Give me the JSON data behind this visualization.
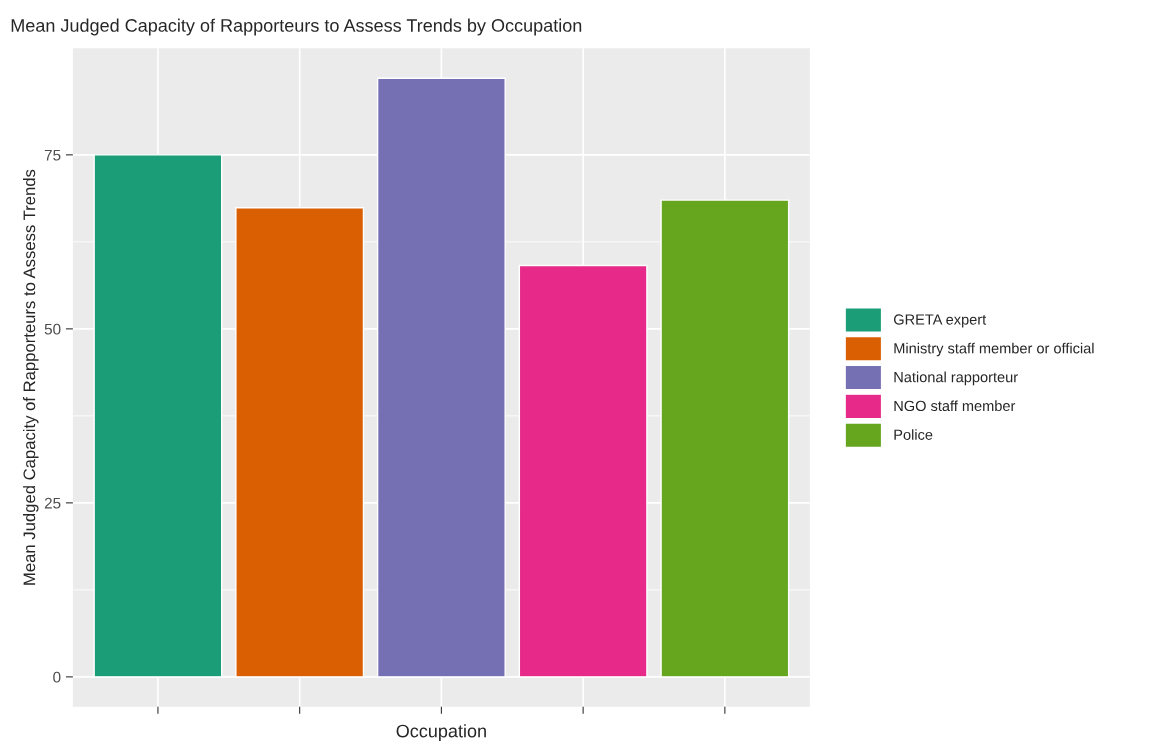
{
  "chart_data": {
    "type": "bar",
    "title": "Mean Judged Capacity of Rapporteurs to Assess Trends by Occupation",
    "xlabel": "Occupation",
    "ylabel": "Mean Judged Capacity of Rapporteurs to Assess Trends",
    "categories": [
      null,
      null,
      null,
      null,
      null
    ],
    "series": [
      {
        "name": "GRETA expert",
        "color": "#1b9e77",
        "values": [
          75,
          null,
          null,
          null,
          null
        ]
      },
      {
        "name": "Ministry staff member or official",
        "color": "#d95f02",
        "values": [
          null,
          67.4,
          null,
          null,
          null
        ]
      },
      {
        "name": "National rapporteur",
        "color": "#7570b3",
        "values": [
          null,
          null,
          86,
          null,
          null
        ]
      },
      {
        "name": "NGO staff member",
        "color": "#e7298a",
        "values": [
          null,
          null,
          null,
          59.1,
          null
        ]
      },
      {
        "name": "Police",
        "color": "#66a61e",
        "values": [
          null,
          null,
          null,
          null,
          68.5
        ]
      }
    ],
    "ylim": [
      -4.3,
      90.3
    ],
    "yticks": [
      0,
      25,
      50,
      75
    ],
    "grid": true,
    "legend": "right",
    "tick_labels": "y"
  }
}
